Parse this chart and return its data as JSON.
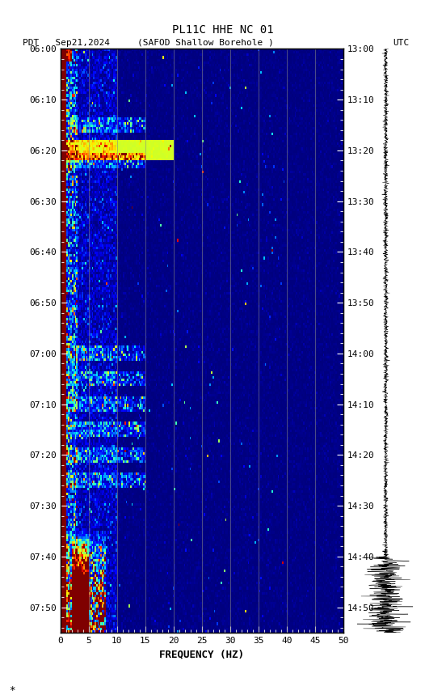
{
  "title_line1": "PL11C HHE NC 01",
  "title_line2_left": "PDT   Sep21,2024",
  "title_line2_center": "(SAFOD Shallow Borehole )",
  "title_line2_right": "UTC",
  "xlabel": "FREQUENCY (HZ)",
  "ytick_left": [
    "06:00",
    "06:10",
    "06:20",
    "06:30",
    "06:40",
    "06:50",
    "07:00",
    "07:10",
    "07:20",
    "07:30",
    "07:40",
    "07:50"
  ],
  "ytick_right": [
    "13:00",
    "13:10",
    "13:20",
    "13:30",
    "13:40",
    "13:50",
    "14:00",
    "14:10",
    "14:20",
    "14:30",
    "14:40",
    "14:50"
  ],
  "ytick_minutes": [
    0,
    10,
    20,
    30,
    40,
    50,
    60,
    70,
    80,
    90,
    100,
    110
  ],
  "freq_gridlines": [
    5,
    10,
    15,
    20,
    25,
    30,
    35,
    40,
    45
  ],
  "xticks": [
    0,
    5,
    10,
    15,
    20,
    25,
    30,
    35,
    40,
    45,
    50
  ],
  "colormap": "jet",
  "fig_width": 5.52,
  "fig_height": 8.64,
  "dpi": 100
}
